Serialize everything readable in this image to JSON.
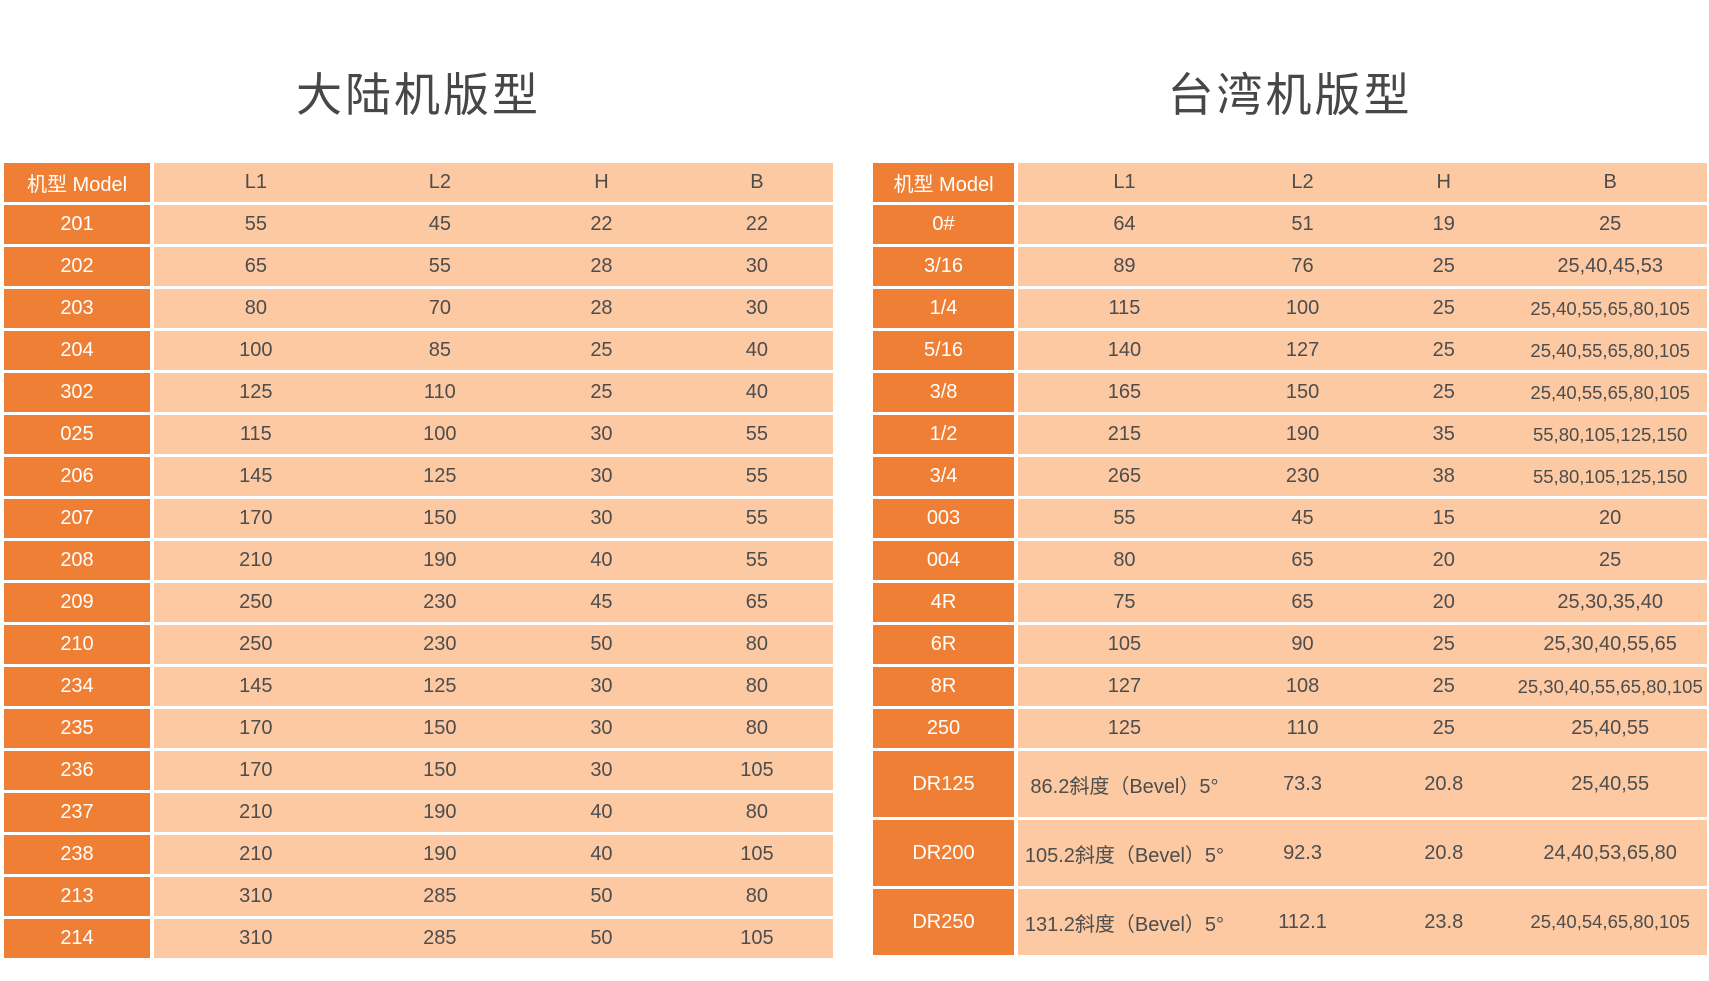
{
  "colors": {
    "orange": "#EF7F35",
    "peach": "#FCC9A2",
    "dark_text": "#4D4D4D",
    "white_text": "#FFFFFF",
    "title_text": "#474747"
  },
  "tables": [
    {
      "title": "大陆机版型",
      "headers": [
        "机型 Model",
        "L1",
        "L2",
        "H",
        "B"
      ],
      "rows": [
        {
          "model": "201",
          "values": [
            "55",
            "45",
            "22",
            "22"
          ],
          "tall": false
        },
        {
          "model": "202",
          "values": [
            "65",
            "55",
            "28",
            "30"
          ],
          "tall": false
        },
        {
          "model": "203",
          "values": [
            "80",
            "70",
            "28",
            "30"
          ],
          "tall": false
        },
        {
          "model": "204",
          "values": [
            "100",
            "85",
            "25",
            "40"
          ],
          "tall": false
        },
        {
          "model": "302",
          "values": [
            "125",
            "110",
            "25",
            "40"
          ],
          "tall": false
        },
        {
          "model": "025",
          "values": [
            "115",
            "100",
            "30",
            "55"
          ],
          "tall": false
        },
        {
          "model": "206",
          "values": [
            "145",
            "125",
            "30",
            "55"
          ],
          "tall": false
        },
        {
          "model": "207",
          "values": [
            "170",
            "150",
            "30",
            "55"
          ],
          "tall": false
        },
        {
          "model": "208",
          "values": [
            "210",
            "190",
            "40",
            "55"
          ],
          "tall": false
        },
        {
          "model": "209",
          "values": [
            "250",
            "230",
            "45",
            "65"
          ],
          "tall": false
        },
        {
          "model": "210",
          "values": [
            "250",
            "230",
            "50",
            "80"
          ],
          "tall": false
        },
        {
          "model": "234",
          "values": [
            "145",
            "125",
            "30",
            "80"
          ],
          "tall": false
        },
        {
          "model": "235",
          "values": [
            "170",
            "150",
            "30",
            "80"
          ],
          "tall": false
        },
        {
          "model": "236",
          "values": [
            "170",
            "150",
            "30",
            "105"
          ],
          "tall": false
        },
        {
          "model": "237",
          "values": [
            "210",
            "190",
            "40",
            "80"
          ],
          "tall": false
        },
        {
          "model": "238",
          "values": [
            "210",
            "190",
            "40",
            "105"
          ],
          "tall": false
        },
        {
          "model": "213",
          "values": [
            "310",
            "285",
            "50",
            "80"
          ],
          "tall": false
        },
        {
          "model": "214",
          "values": [
            "310",
            "285",
            "50",
            "105"
          ],
          "tall": false
        }
      ]
    },
    {
      "title": "台湾机版型",
      "headers": [
        "机型 Model",
        "L1",
        "L2",
        "H",
        "B"
      ],
      "rows": [
        {
          "model": "0#",
          "values": [
            "64",
            "51",
            "19",
            "25"
          ],
          "tall": false
        },
        {
          "model": "3/16",
          "values": [
            "89",
            "76",
            "25",
            "25,40,45,53"
          ],
          "tall": false
        },
        {
          "model": "1/4",
          "values": [
            "115",
            "100",
            "25",
            "25,40,55,65,80,105"
          ],
          "tall": false
        },
        {
          "model": "5/16",
          "values": [
            "140",
            "127",
            "25",
            "25,40,55,65,80,105"
          ],
          "tall": false
        },
        {
          "model": "3/8",
          "values": [
            "165",
            "150",
            "25",
            "25,40,55,65,80,105"
          ],
          "tall": false
        },
        {
          "model": "1/2",
          "values": [
            "215",
            "190",
            "35",
            "55,80,105,125,150"
          ],
          "tall": false
        },
        {
          "model": "3/4",
          "values": [
            "265",
            "230",
            "38",
            "55,80,105,125,150"
          ],
          "tall": false
        },
        {
          "model": "003",
          "values": [
            "55",
            "45",
            "15",
            "20"
          ],
          "tall": false
        },
        {
          "model": "004",
          "values": [
            "80",
            "65",
            "20",
            "25"
          ],
          "tall": false
        },
        {
          "model": "4R",
          "values": [
            "75",
            "65",
            "20",
            "25,30,35,40"
          ],
          "tall": false
        },
        {
          "model": "6R",
          "values": [
            "105",
            "90",
            "25",
            "25,30,40,55,65"
          ],
          "tall": false
        },
        {
          "model": "8R",
          "values": [
            "127",
            "108",
            "25",
            "25,30,40,55,65,80,105"
          ],
          "tall": false
        },
        {
          "model": "250",
          "values": [
            "125",
            "110",
            "25",
            "25,40,55"
          ],
          "tall": false
        },
        {
          "model": "DR125",
          "values": [
            "86.2斜度（Bevel）5°",
            "73.3",
            "20.8",
            "25,40,55"
          ],
          "tall": true
        },
        {
          "model": "DR200",
          "values": [
            "105.2斜度（Bevel）5°",
            "92.3",
            "20.8",
            "24,40,53,65,80"
          ],
          "tall": true
        },
        {
          "model": "DR250",
          "values": [
            "131.2斜度（Bevel）5°",
            "112.1",
            "23.8",
            "25,40,54,65,80,105"
          ],
          "tall": true
        }
      ]
    }
  ]
}
